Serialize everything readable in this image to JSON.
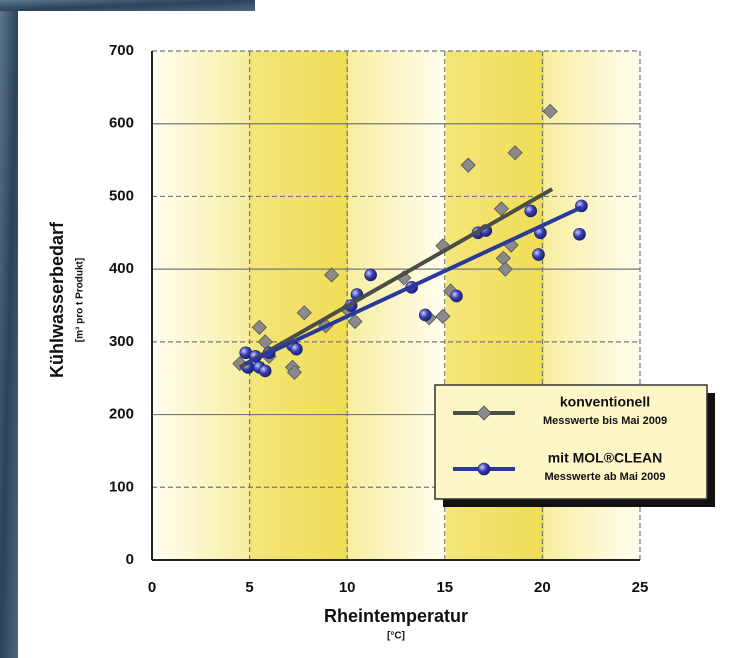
{
  "chart_data": {
    "type": "scatter",
    "y_label": "Kühlwasserbedarf",
    "y_unit": "[m³ pro t Produkt]",
    "x_label": "Rheintemperatur",
    "x_unit": "[°C]",
    "xlim": [
      0,
      25
    ],
    "xticks": [
      0,
      5,
      10,
      15,
      20,
      25
    ],
    "ylim": [
      0,
      700
    ],
    "yticks": [
      0,
      100,
      200,
      300,
      400,
      500,
      600,
      700
    ],
    "grid": true,
    "legend": "lower right",
    "series": [
      {
        "name": "konventionell",
        "note": "Messwerte bis Mai 2009",
        "color": "#8a8a8a",
        "marker": "diamond",
        "line_color": "#4a4d48",
        "x": [
          4.5,
          5,
          5.5,
          5.8,
          6,
          7.2,
          7.3,
          7.8,
          8.9,
          9.2,
          10,
          10.4,
          12.9,
          14.2,
          14.9,
          14.9,
          15.3,
          16.2,
          17.9,
          18,
          18.1,
          18.4,
          18.6,
          20.4
        ],
        "values": [
          270,
          265,
          320,
          300,
          280,
          265,
          258,
          340,
          322,
          392,
          345,
          328,
          388,
          333,
          335,
          432,
          370,
          543,
          483,
          415,
          400,
          433,
          560,
          617
        ],
        "trend_x": [
          4.5,
          20.5
        ],
        "trend_values": [
          265,
          510
        ]
      },
      {
        "name": "mit MOL®CLEAN",
        "note": "Messwerte ab Mai 2009",
        "color": "#3a3fb0",
        "marker": "circle",
        "line_color": "#2a3a9a",
        "x": [
          4.8,
          4.9,
          5.3,
          5.5,
          5.8,
          6,
          7.2,
          7.4,
          10.2,
          10.5,
          11.2,
          13.3,
          14,
          15.6,
          16.7,
          17.1,
          19.4,
          19.8,
          19.9,
          21.9,
          22
        ],
        "values": [
          285,
          265,
          280,
          265,
          260,
          285,
          295,
          290,
          350,
          365,
          392,
          375,
          337,
          363,
          450,
          453,
          480,
          420,
          450,
          448,
          487
        ],
        "trend_x": [
          4.8,
          22
        ],
        "trend_values": [
          270,
          485
        ]
      }
    ]
  }
}
